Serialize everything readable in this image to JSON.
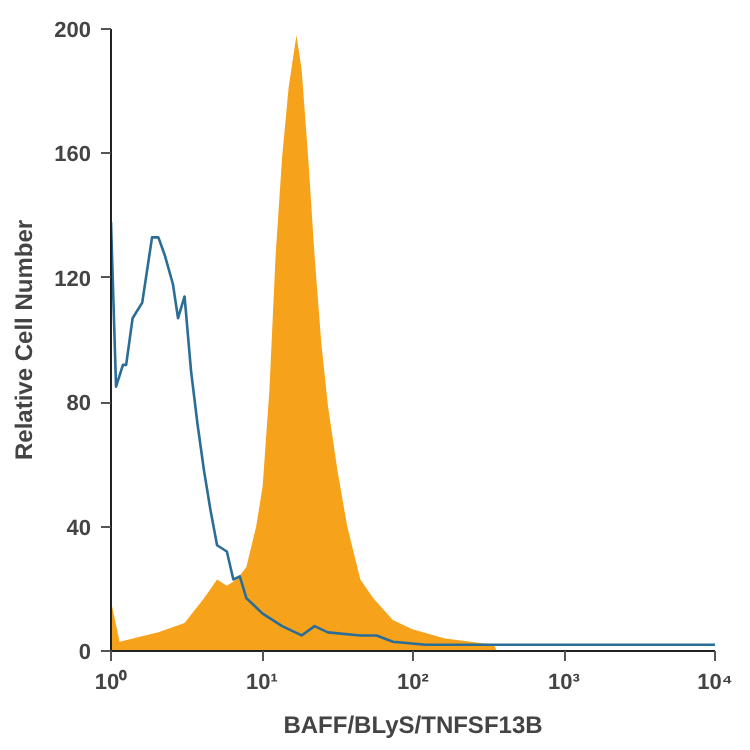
{
  "chart_data": {
    "type": "area",
    "xlabel": "BAFF/BLyS/TNFSF13B",
    "ylabel": "Relative Cell Number",
    "log": "x",
    "grid": false,
    "xlim": [
      1,
      10000
    ],
    "ylim": [
      0,
      200
    ],
    "xticks": [
      {
        "value": 1,
        "label": "10⁰"
      },
      {
        "value": 10,
        "label": "10¹"
      },
      {
        "value": 100,
        "label": "10²"
      },
      {
        "value": 1000,
        "label": "10³"
      },
      {
        "value": 10000,
        "label": "10⁴"
      }
    ],
    "yticks": [
      0,
      40,
      80,
      120,
      160,
      200
    ],
    "series": [
      {
        "color": "#f7a21b",
        "x": [
          1,
          1.14,
          2.06,
          3.07,
          4.13,
          5.04,
          5.85,
          6.79,
          7.88,
          9.15,
          10.1,
          11.2,
          12.3,
          13.6,
          15.0,
          16.9,
          18.3,
          20.2,
          22.3,
          24.7,
          27.3,
          31.6,
          36.7,
          44.8,
          54.6,
          73.5,
          99,
          163,
          242,
          342,
          360
        ],
        "values": [
          16,
          3,
          6,
          9,
          17,
          23,
          21,
          23,
          27,
          40,
          53,
          84,
          127,
          159,
          181,
          198,
          187,
          159,
          127,
          99,
          79,
          58,
          40,
          23,
          17,
          10,
          7,
          4,
          3,
          2,
          0
        ]
      },
      {
        "type": "line",
        "color": "#2a6d96",
        "x": [
          1,
          1.08,
          1.2,
          1.26,
          1.39,
          1.61,
          1.87,
          2.06,
          2.28,
          2.57,
          2.78,
          3.07,
          3.39,
          3.74,
          4.13,
          4.57,
          5.04,
          5.85,
          6.46,
          7.13,
          7.88,
          10.1,
          13.6,
          18.3,
          22.3,
          27.3,
          44.8,
          57.4,
          73.5,
          121,
          10000
        ],
        "values": [
          138,
          85,
          92,
          92,
          107,
          112,
          133,
          133,
          127,
          118,
          107,
          114,
          90,
          73,
          58,
          45,
          34,
          32,
          23,
          24,
          17,
          12,
          8,
          5,
          8,
          6,
          5,
          5,
          3,
          2,
          2
        ]
      }
    ]
  }
}
